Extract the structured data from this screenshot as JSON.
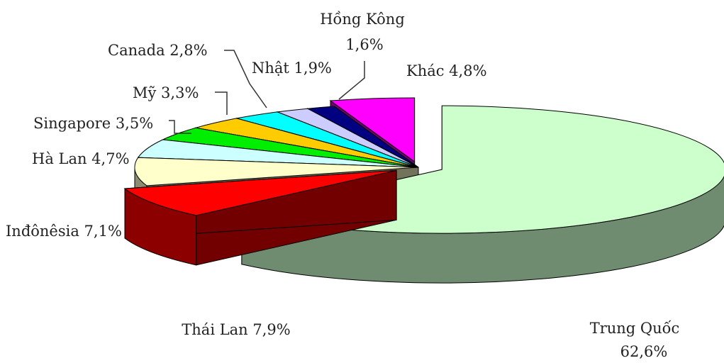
{
  "chart_data": {
    "type": "pie",
    "three_d": true,
    "exploded": [
      "Trung Quốc",
      "Thái Lan",
      "Khác"
    ],
    "slices": [
      {
        "name": "Trung Quốc",
        "value": 62.6,
        "label": "Trung Quốc",
        "label2": "62,6%",
        "color": "#ccffcc"
      },
      {
        "name": "Thái Lan",
        "value": 7.9,
        "label": "Thái Lan 7,9%",
        "color": "#ff0000"
      },
      {
        "name": "Inđônêsia",
        "value": 7.1,
        "label": "Inđônêsia 7,1%",
        "color": "#ffffcc"
      },
      {
        "name": "Hà Lan",
        "value": 4.7,
        "label": "Hà Lan 4,7%",
        "color": "#ccffff"
      },
      {
        "name": "Singapore",
        "value": 3.5,
        "label": "Singapore 3,5%",
        "color": "#00ee00"
      },
      {
        "name": "Mỹ",
        "value": 3.3,
        "label": "Mỹ 3,3%",
        "color": "#ffcc00"
      },
      {
        "name": "Canada",
        "value": 2.8,
        "label": "Canada 2,8%",
        "color": "#00ffff"
      },
      {
        "name": "Nhật",
        "value": 1.9,
        "label": "Nhật 1,9%",
        "color": "#ccccff"
      },
      {
        "name": "Hồng Kông",
        "value": 1.6,
        "label": "Hồng Kông",
        "label2": "1,6%",
        "color": "#000080"
      },
      {
        "name": "Khác",
        "value": 4.8,
        "label": "Khác 4,8%",
        "color": "#ff00ff"
      }
    ]
  }
}
